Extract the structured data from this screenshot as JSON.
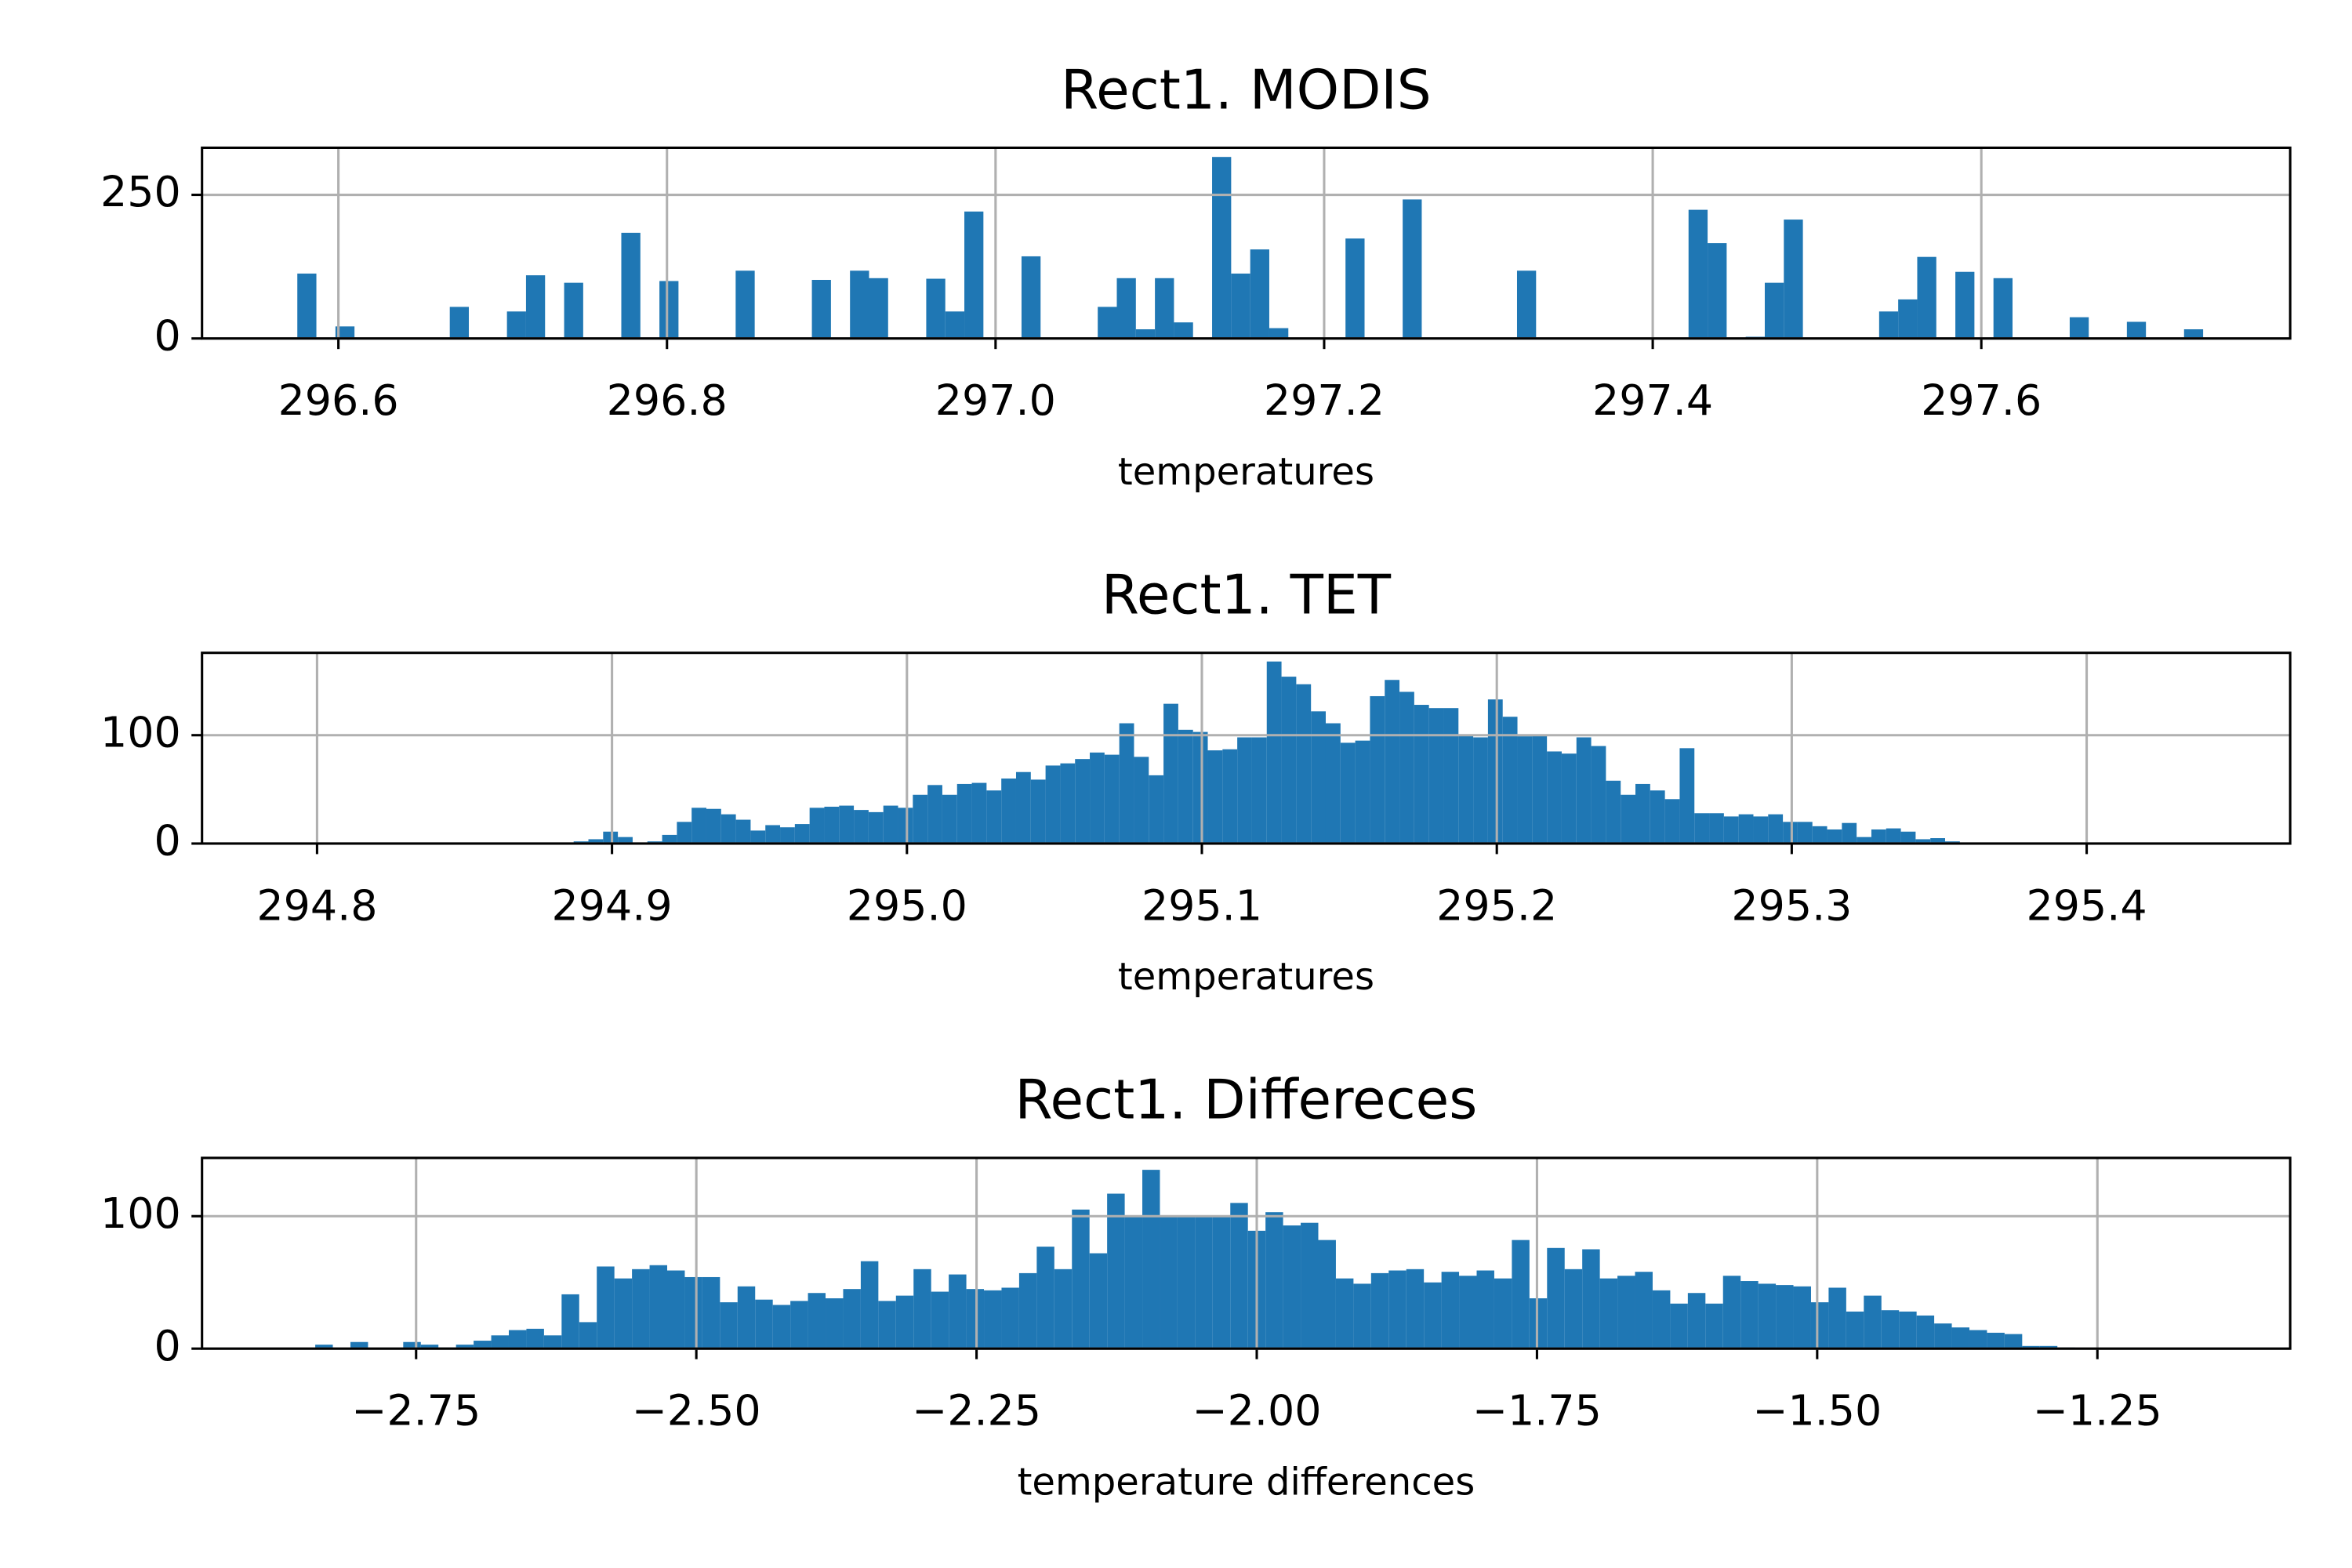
{
  "chart_data": [
    {
      "type": "histogram",
      "title": "Rect1. MODIS",
      "xlabel": "temperatures",
      "color": "#1f77b4",
      "grid": true,
      "xlim": [
        296.517,
        297.788
      ],
      "ylim": [
        0,
        332
      ],
      "xticks": [
        296.6,
        296.8,
        {
          "value": 297,
          "label": "297.0"
        },
        297.2,
        297.4,
        297.6
      ],
      "yticks": [
        0,
        250
      ],
      "bins": [
        296.575,
        296.5866,
        296.5982,
        296.6098,
        296.6214,
        296.633,
        296.6446,
        296.6562,
        296.6678,
        296.6794,
        296.691,
        296.7026,
        296.7142,
        296.7258,
        296.7374,
        296.749,
        296.7606,
        296.7722,
        296.7838,
        296.7954,
        296.807,
        296.8186,
        296.8302,
        296.8418,
        296.8534,
        296.865,
        296.8766,
        296.8882,
        296.8998,
        296.9114,
        296.923,
        296.9346,
        296.9462,
        296.9578,
        296.9694,
        296.981,
        296.9926,
        297.0042,
        297.0158,
        297.0274,
        297.039,
        297.0506,
        297.0622,
        297.0738,
        297.0854,
        297.097,
        297.1086,
        297.1202,
        297.1318,
        297.1434,
        297.155,
        297.1666,
        297.1782,
        297.1898,
        297.2014,
        297.213,
        297.2246,
        297.2362,
        297.2478,
        297.2594,
        297.271,
        297.2826,
        297.2942,
        297.3058,
        297.3174,
        297.329,
        297.3406,
        297.3522,
        297.3638,
        297.3754,
        297.387,
        297.3986,
        297.4102,
        297.4218,
        297.4334,
        297.445,
        297.4566,
        297.4682,
        297.4798,
        297.4914,
        297.503,
        297.5146,
        297.5262,
        297.5378,
        297.5494,
        297.561,
        297.5726,
        297.5842,
        297.5958,
        297.6074,
        297.619,
        297.6306,
        297.6422,
        297.6538,
        297.6654,
        297.677,
        297.6886,
        297.7002,
        297.7118,
        297.7234,
        297.735
      ],
      "values": [
        113,
        0,
        21,
        0,
        0,
        0,
        0,
        0,
        55,
        0,
        0,
        47,
        110,
        0,
        97,
        0,
        0,
        184,
        0,
        100,
        0,
        0,
        0,
        118,
        0,
        0,
        0,
        102,
        0,
        118,
        105,
        0,
        0,
        104,
        47,
        221,
        0,
        0,
        143,
        0,
        0,
        0,
        55,
        105,
        16,
        105,
        28,
        0,
        316,
        113,
        155,
        18,
        0,
        0,
        0,
        174,
        0,
        0,
        242,
        0,
        0,
        0,
        0,
        0,
        118,
        0,
        0,
        0,
        0,
        0,
        0,
        0,
        0,
        224,
        166,
        0,
        3,
        97,
        207,
        0,
        0,
        0,
        0,
        47,
        68,
        142,
        0,
        116,
        0,
        105,
        0,
        0,
        0,
        37,
        0,
        0,
        29,
        0,
        0,
        16
      ]
    },
    {
      "type": "histogram",
      "title": "Rect1. TET",
      "xlabel": "temperatures",
      "color": "#1f77b4",
      "grid": true,
      "xlim": [
        294.761,
        295.469
      ],
      "ylim": [
        0,
        176
      ],
      "xticks": [
        294.8,
        294.9,
        {
          "value": 295,
          "label": "295.0"
        },
        295.1,
        295.2,
        295.3,
        295.4
      ],
      "yticks": [
        0,
        100
      ],
      "bins": [
        294.857,
        294.862,
        294.867,
        294.872,
        294.877,
        294.882,
        294.887,
        294.892,
        294.897,
        294.902,
        294.907,
        294.912,
        294.917,
        294.922,
        294.927,
        294.932,
        294.937,
        294.942,
        294.947,
        294.952,
        294.957,
        294.962,
        294.967,
        294.972,
        294.977,
        294.982,
        294.987,
        294.992,
        294.997,
        295.002,
        295.007,
        295.012,
        295.017,
        295.022,
        295.027,
        295.032,
        295.037,
        295.042,
        295.047,
        295.052,
        295.057,
        295.062,
        295.067,
        295.072,
        295.077,
        295.082,
        295.087,
        295.092,
        295.097,
        295.102,
        295.107,
        295.112,
        295.117,
        295.122,
        295.127,
        295.132,
        295.137,
        295.142,
        295.147,
        295.152,
        295.157,
        295.162,
        295.167,
        295.172,
        295.177,
        295.182,
        295.187,
        295.192,
        295.197,
        295.202,
        295.207,
        295.212,
        295.217,
        295.222,
        295.227,
        295.232,
        295.237,
        295.242,
        295.247,
        295.252,
        295.257,
        295.262,
        295.267,
        295.272,
        295.277,
        295.282,
        295.287,
        295.292,
        295.297,
        295.302,
        295.307,
        295.312,
        295.317,
        295.322,
        295.327,
        295.332,
        295.337,
        295.342,
        295.347,
        295.352,
        295.357
      ],
      "values": [
        1,
        0,
        0,
        0,
        0,
        0,
        2,
        4,
        11,
        6,
        1,
        2,
        8,
        20,
        33,
        32,
        27,
        22,
        12,
        17,
        15,
        18,
        33,
        34,
        35,
        31,
        29,
        35,
        33,
        45,
        54,
        45,
        55,
        56,
        49,
        60,
        66,
        59,
        72,
        74,
        78,
        84,
        82,
        111,
        80,
        63,
        129,
        105,
        103,
        86,
        87,
        98,
        98,
        168,
        154,
        147,
        122,
        111,
        93,
        95,
        136,
        151,
        140,
        128,
        125,
        125,
        100,
        98,
        133,
        117,
        99,
        100,
        85,
        83,
        98,
        90,
        58,
        45,
        55,
        49,
        41,
        88,
        28,
        28,
        25,
        27,
        25,
        27,
        20,
        20,
        16,
        13,
        19,
        6,
        13,
        14,
        11,
        4,
        5,
        2
      ]
    },
    {
      "type": "histogram",
      "title": "Rect1. Differeces",
      "xlabel": "temperature differences",
      "color": "#1f77b4",
      "grid": true,
      "xlim": [
        -2.941,
        -1.078
      ],
      "ylim": [
        0,
        144
      ],
      "xticks": [
        {
          "value": -2.75,
          "label": "−2.75"
        },
        {
          "value": -2.5,
          "label": "−2.50"
        },
        {
          "value": -2.25,
          "label": "−2.25"
        },
        {
          "value": -2,
          "label": "−2.00"
        },
        {
          "value": -1.75,
          "label": "−1.75"
        },
        {
          "value": -1.5,
          "label": "−1.50"
        },
        {
          "value": -1.25,
          "label": "−1.25"
        }
      ],
      "yticks": [
        0,
        100
      ],
      "bins": [
        -2.84,
        -2.8243,
        -2.8086,
        -2.7929,
        -2.7772,
        -2.7615,
        -2.7458,
        -2.7301,
        -2.7144,
        -2.6987,
        -2.683,
        -2.6673,
        -2.6516,
        -2.6359,
        -2.6202,
        -2.6045,
        -2.5888,
        -2.5731,
        -2.5574,
        -2.5417,
        -2.526,
        -2.5103,
        -2.4946,
        -2.4789,
        -2.4632,
        -2.4475,
        -2.4318,
        -2.4161,
        -2.4004,
        -2.3847,
        -2.369,
        -2.3533,
        -2.3376,
        -2.3219,
        -2.3062,
        -2.2905,
        -2.2748,
        -2.2591,
        -2.2434,
        -2.2277,
        -2.212,
        -2.1963,
        -2.1806,
        -2.1649,
        -2.1492,
        -2.1335,
        -2.1178,
        -2.1021,
        -2.0864,
        -2.0707,
        -2.055,
        -2.0393,
        -2.0236,
        -2.0079,
        -1.9922,
        -1.9765,
        -1.9608,
        -1.9451,
        -1.9294,
        -1.9137,
        -1.898,
        -1.8823,
        -1.8666,
        -1.8509,
        -1.8352,
        -1.8195,
        -1.8038,
        -1.7881,
        -1.7724,
        -1.7567,
        -1.741,
        -1.7253,
        -1.7096,
        -1.6939,
        -1.6782,
        -1.6625,
        -1.6468,
        -1.6311,
        -1.6154,
        -1.5997,
        -1.584,
        -1.5683,
        -1.5526,
        -1.5369,
        -1.5212,
        -1.5055,
        -1.4898,
        -1.4741,
        -1.4584,
        -1.4427,
        -1.427,
        -1.4113,
        -1.3956,
        -1.3799,
        -1.3642,
        -1.3485,
        -1.3328,
        -1.3171,
        -1.3014,
        -1.2857,
        -1.27
      ],
      "values": [
        3,
        0,
        5,
        0,
        0,
        5,
        3,
        1,
        3,
        6,
        10,
        14,
        15,
        10,
        41,
        20,
        62,
        53,
        60,
        63,
        59,
        54,
        54,
        35,
        47,
        37,
        33,
        36,
        42,
        38,
        45,
        66,
        36,
        40,
        60,
        43,
        56,
        45,
        44,
        46,
        57,
        77,
        60,
        105,
        72,
        117,
        100,
        135,
        100,
        100,
        100,
        100,
        110,
        89,
        103,
        93,
        95,
        82,
        53,
        49,
        57,
        59,
        60,
        50,
        58,
        55,
        59,
        53,
        82,
        38,
        76,
        60,
        75,
        53,
        55,
        58,
        44,
        34,
        42,
        34,
        55,
        51,
        49,
        48,
        47,
        35,
        46,
        28,
        40,
        29,
        28,
        25,
        19,
        16,
        14,
        12,
        11,
        2,
        2,
        1
      ]
    }
  ]
}
